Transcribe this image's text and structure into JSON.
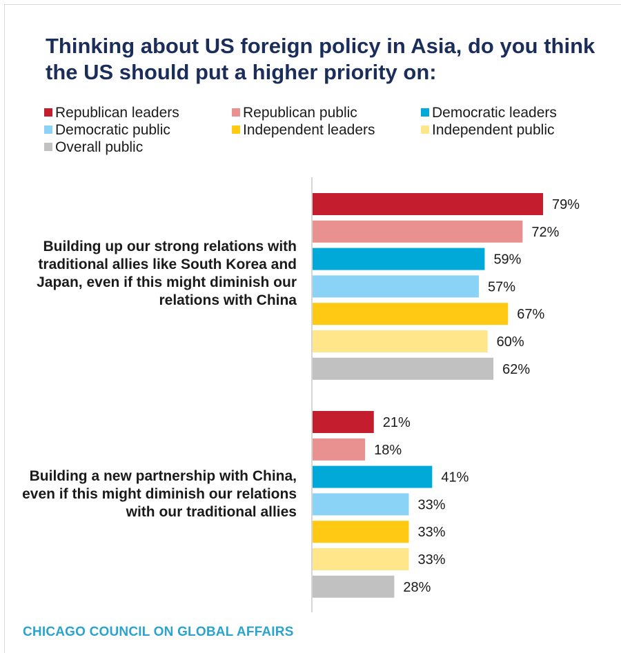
{
  "title": "Thinking about US foreign policy in Asia, do you think the US should put a higher priority on:",
  "footer": "CHICAGO COUNCIL ON GLOBAL AFFAIRS",
  "chart_data": {
    "type": "bar",
    "orientation": "horizontal",
    "title": "Thinking about US foreign policy in Asia, do you think the US should put a higher priority on:",
    "xlabel": "",
    "ylabel": "",
    "xlim": [
      0,
      100
    ],
    "grid": false,
    "legend_position": "top",
    "value_suffix": "%",
    "categories": [
      "Building up our strong relations with traditional allies like South Korea and Japan, even if this might diminish our relations with China",
      "Building a new partnership with China, even if this might diminish our relations with our traditional allies"
    ],
    "series": [
      {
        "name": "Republican leaders",
        "color": "#c41e2e",
        "values": [
          79,
          21
        ]
      },
      {
        "name": "Republican public",
        "color": "#e99191",
        "values": [
          72,
          18
        ]
      },
      {
        "name": "Democratic leaders",
        "color": "#00a9d8",
        "values": [
          59,
          41
        ]
      },
      {
        "name": "Democratic public",
        "color": "#8ad3f7",
        "values": [
          57,
          33
        ]
      },
      {
        "name": "Independent leaders",
        "color": "#ffc914",
        "values": [
          67,
          33
        ]
      },
      {
        "name": "Independent public",
        "color": "#ffe68a",
        "values": [
          60,
          33
        ]
      },
      {
        "name": "Overall public",
        "color": "#c1c1c1",
        "values": [
          62,
          28
        ]
      }
    ]
  }
}
